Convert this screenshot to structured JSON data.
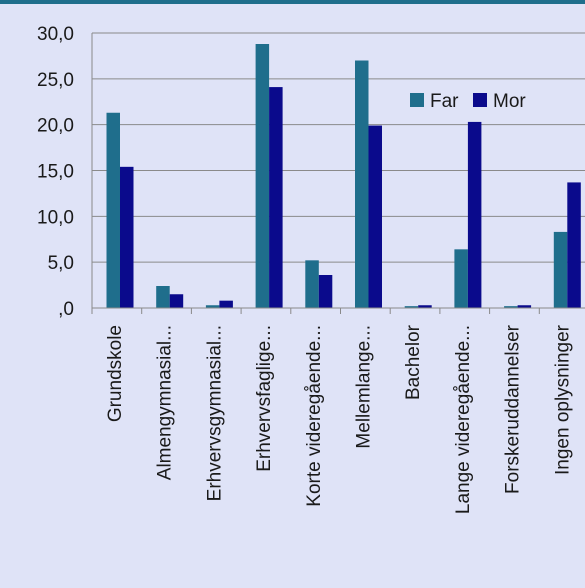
{
  "chart_data": {
    "type": "bar",
    "categories": [
      "Grundskole",
      "Almengymnasial...",
      "Erhvervsgymnasial...",
      "Erhvervsfaglige...",
      "Korte videregående...",
      "Mellemlange...",
      "Bachelor",
      "Lange videregående...",
      "Forskeruddannelser",
      "Ingen oplysninger"
    ],
    "series": [
      {
        "name": "Far",
        "color": "#1f6e8c",
        "values": [
          21.3,
          2.4,
          0.3,
          28.8,
          5.2,
          27.0,
          0.2,
          6.4,
          0.2,
          8.3
        ]
      },
      {
        "name": "Mor",
        "color": "#0a0a8c",
        "values": [
          15.4,
          1.5,
          0.8,
          24.1,
          3.6,
          19.9,
          0.3,
          20.3,
          0.3,
          13.7
        ]
      }
    ],
    "ylim": [
      0,
      30
    ],
    "yticks": [
      "30,0",
      "25,0",
      "20,0",
      "15,0",
      "10,0",
      "5,0",
      ",0"
    ],
    "ytick_values": [
      30,
      25,
      20,
      15,
      10,
      5,
      0
    ],
    "grid": true,
    "legend_position": "top-right",
    "title": "",
    "xlabel": "",
    "ylabel": ""
  },
  "colors": {
    "background": "#dfe3f7",
    "gridline": "#8a8a8a",
    "top_rule": "#1f6e8c"
  }
}
